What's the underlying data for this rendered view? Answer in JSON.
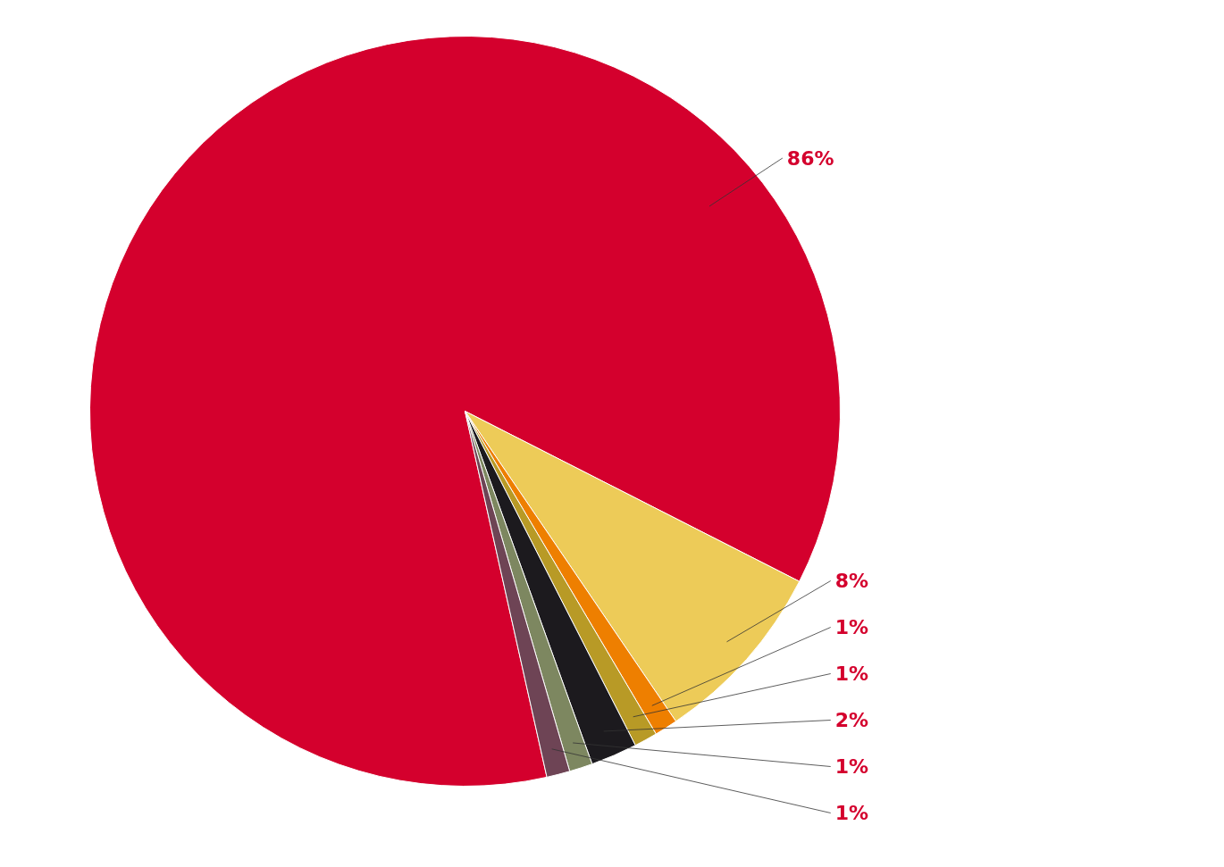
{
  "chart_data": {
    "type": "pie",
    "categories": [
      null,
      null,
      null,
      null,
      null,
      null,
      null
    ],
    "values": [
      86,
      8,
      1,
      1,
      2,
      1,
      1
    ],
    "colors": [
      "#d4002d",
      "#edcb58",
      "#ee7f00",
      "#b89a26",
      "#1c1a1e",
      "#7d8760",
      "#6e4455"
    ],
    "value_labels": [
      "86%",
      "8%",
      "1%",
      "1%",
      "2%",
      "1%",
      "1%"
    ]
  }
}
